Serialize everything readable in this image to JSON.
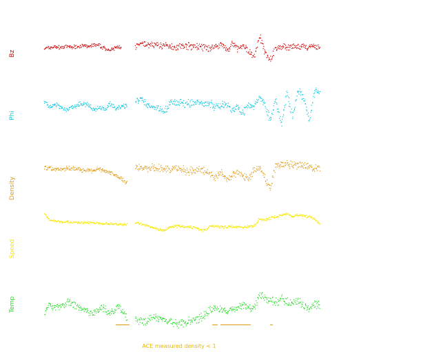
{
  "chart_data": {
    "type": "scatter",
    "title": "",
    "xlabel": "",
    "panels": [
      {
        "name": "Bz",
        "color": "#cc0000",
        "ylim": [
          -1,
          1
        ],
        "segments": [
          {
            "x": [
              0,
              2,
              4,
              6,
              8,
              10,
              12,
              14,
              16,
              18,
              20,
              22,
              24,
              26,
              28
            ],
            "y": [
              0.0,
              0.05,
              0.1,
              0.05,
              0.1,
              0.08,
              0.12,
              0.15,
              0.1,
              0.2,
              0.15,
              0.0,
              -0.1,
              0.05,
              0.1
            ],
            "noise": 0.08
          },
          {
            "x": [
              33,
              36,
              38,
              40,
              44,
              48,
              52,
              56,
              58,
              60,
              62,
              64,
              66,
              67,
              68,
              70,
              72,
              74,
              76,
              78,
              80,
              82,
              84,
              86,
              88,
              90,
              93,
              96,
              100
            ],
            "y": [
              0.1,
              0.25,
              0.2,
              0.2,
              0.15,
              0.1,
              0.15,
              0.1,
              0.05,
              0.0,
              0.1,
              0.25,
              0.0,
              -0.1,
              0.25,
              0.0,
              0.1,
              -0.1,
              -0.5,
              0.7,
              -0.2,
              -0.6,
              0.0,
              0.1,
              0.05,
              0.1,
              0.05,
              0.1,
              0.05
            ],
            "noise": 0.14
          }
        ]
      },
      {
        "name": "Phi",
        "color": "#00c8e0",
        "ylim": [
          -1,
          1
        ],
        "segments": [
          {
            "x": [
              0,
              2,
              4,
              6,
              8,
              10,
              12,
              14,
              16,
              18,
              20,
              22,
              24,
              26,
              28,
              30
            ],
            "y": [
              0.3,
              0.0,
              0.1,
              0.0,
              -0.2,
              0.0,
              0.1,
              0.2,
              0.1,
              -0.2,
              0.0,
              -0.1,
              0.2,
              -0.1,
              0.0,
              0.1
            ],
            "noise": 0.1
          },
          {
            "x": [
              33,
              35,
              37,
              40,
              42,
              44,
              46,
              48,
              52,
              56,
              60,
              62,
              64,
              66,
              68,
              70,
              72,
              74,
              76,
              78,
              80,
              82,
              84,
              86,
              88,
              90,
              92,
              94,
              96,
              98,
              100
            ],
            "y": [
              0.3,
              0.4,
              0.1,
              0.0,
              -0.1,
              -0.2,
              0.3,
              0.2,
              0.2,
              0.25,
              0.2,
              0.0,
              0.1,
              0.2,
              -0.2,
              0.0,
              -0.3,
              0.1,
              0.0,
              0.6,
              0.2,
              -0.8,
              0.4,
              -1.0,
              0.8,
              -0.6,
              0.9,
              0.5,
              -0.7,
              0.9,
              0.8
            ],
            "noise": 0.16
          }
        ]
      },
      {
        "name": "Density",
        "color": "#e09a10",
        "ylim": [
          -1,
          1
        ],
        "segments": [
          {
            "x": [
              0,
              3,
              6,
              9,
              12,
              15,
              18,
              20,
              22,
              24,
              26,
              28,
              30
            ],
            "y": [
              0.2,
              0.1,
              0.1,
              0.15,
              0.1,
              0.05,
              0.0,
              0.1,
              0.0,
              -0.1,
              -0.2,
              -0.45,
              -0.7
            ],
            "noise": 0.1
          },
          {
            "x": [
              33,
              36,
              40,
              44,
              48,
              52,
              56,
              58,
              60,
              62,
              64,
              66,
              68,
              70,
              72,
              74,
              76,
              78,
              80,
              82,
              84,
              86,
              88,
              90,
              93,
              96,
              100
            ],
            "y": [
              0.2,
              0.15,
              0.15,
              0.1,
              0.1,
              0.0,
              0.05,
              0.0,
              -0.1,
              -0.4,
              -0.1,
              -0.4,
              -0.3,
              0.0,
              -0.3,
              -0.5,
              0.1,
              0.2,
              -0.4,
              -1.0,
              0.4,
              0.3,
              0.4,
              0.3,
              0.3,
              0.2,
              0.1
            ],
            "noise": 0.16
          }
        ]
      },
      {
        "name": "Speed",
        "color": "#f4e800",
        "ylim": [
          -1,
          1
        ],
        "segments": [
          {
            "x": [
              0,
              2,
              4,
              6,
              9,
              12,
              15,
              18,
              21,
              24,
              27,
              30
            ],
            "y": [
              0.6,
              0.25,
              0.2,
              0.15,
              0.15,
              0.1,
              0.1,
              0.1,
              0.05,
              0.05,
              0.0,
              0.0
            ],
            "noise": 0.05
          },
          {
            "x": [
              33,
              36,
              40,
              43,
              46,
              50,
              54,
              58,
              60,
              62,
              65,
              68,
              72,
              76,
              78,
              80,
              83,
              86,
              88,
              90,
              92,
              94,
              96,
              98,
              100
            ],
            "y": [
              0.1,
              0.0,
              -0.2,
              -0.35,
              -0.1,
              -0.1,
              -0.15,
              -0.35,
              -0.1,
              -0.1,
              -0.15,
              -0.1,
              -0.15,
              -0.1,
              0.3,
              0.25,
              0.4,
              0.5,
              0.6,
              0.45,
              0.55,
              0.5,
              0.45,
              0.3,
              0.0
            ],
            "noise": 0.06
          }
        ]
      },
      {
        "name": "Temp",
        "color": "#22dd22",
        "ylim": [
          -1,
          1
        ],
        "segments": [
          {
            "x": [
              0,
              2,
              4,
              6,
              9,
              12,
              15,
              18,
              21,
              24,
              27,
              30
            ],
            "y": [
              -0.3,
              0.2,
              0.0,
              0.1,
              0.3,
              0.0,
              -0.2,
              -0.3,
              0.0,
              -0.3,
              0.1,
              -0.6
            ],
            "noise": 0.16
          },
          {
            "x": [
              33,
              36,
              40,
              44,
              48,
              52,
              56,
              58,
              60,
              62,
              64,
              66,
              68,
              70,
              72,
              74,
              76,
              78,
              80,
              82,
              84,
              86,
              88,
              90,
              92,
              94,
              96,
              98,
              100
            ],
            "y": [
              -0.7,
              -0.8,
              -0.5,
              -0.7,
              -0.9,
              -0.8,
              -0.6,
              -0.4,
              -0.1,
              0.0,
              -0.1,
              -0.3,
              0.0,
              -0.1,
              0.2,
              0.0,
              -0.1,
              0.7,
              0.5,
              0.4,
              0.3,
              0.5,
              0.3,
              0.2,
              0.4,
              0.1,
              0.0,
              0.2,
              0.1
            ],
            "noise": 0.17
          }
        ]
      }
    ],
    "density_flag_color": "#e09a10",
    "density_flag_intervals": [
      [
        26,
        31
      ],
      [
        61,
        63
      ],
      [
        64,
        75
      ],
      [
        82,
        83
      ]
    ],
    "note": "ACE measured density < 1",
    "note_color": "#e8b800"
  }
}
